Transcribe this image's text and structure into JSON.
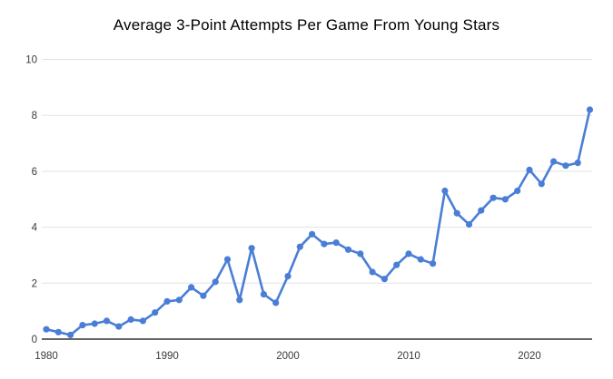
{
  "chart": {
    "title": "Average 3-Point Attempts Per Game From Young Stars"
  },
  "chart_data": {
    "type": "line",
    "title": "Average 3-Point Attempts Per Game From Young Stars",
    "xlabel": "",
    "ylabel": "",
    "x": [
      1980,
      1981,
      1982,
      1983,
      1984,
      1985,
      1986,
      1987,
      1988,
      1989,
      1990,
      1991,
      1992,
      1993,
      1994,
      1995,
      1996,
      1997,
      1998,
      1999,
      2000,
      2001,
      2002,
      2003,
      2004,
      2005,
      2006,
      2007,
      2008,
      2009,
      2010,
      2011,
      2012,
      2013,
      2014,
      2015,
      2016,
      2017,
      2018,
      2019,
      2020,
      2021,
      2022,
      2023,
      2024,
      2025
    ],
    "values": [
      0.35,
      0.25,
      0.15,
      0.5,
      0.55,
      0.65,
      0.45,
      0.7,
      0.65,
      0.95,
      1.35,
      1.4,
      1.85,
      1.55,
      2.05,
      2.85,
      1.4,
      3.25,
      1.6,
      1.3,
      2.25,
      3.3,
      3.75,
      3.4,
      3.45,
      3.2,
      3.05,
      2.4,
      2.15,
      2.65,
      3.05,
      2.85,
      2.7,
      5.3,
      4.5,
      4.1,
      4.6,
      5.05,
      5.0,
      5.3,
      6.05,
      5.55,
      6.35,
      6.2,
      6.3,
      8.2
    ],
    "ylim": [
      0,
      10
    ],
    "yticks": [
      0,
      2,
      4,
      6,
      8,
      10
    ],
    "xticks": [
      1980,
      1990,
      2000,
      2010,
      2020
    ],
    "grid": true,
    "legend_position": "none",
    "line_color": "#4a7ed6",
    "point_color": "#4a7ed6",
    "gridline_color": "#e2e2e2",
    "axis_line_color": "#333333",
    "tick_label_color": "#3a3a3a",
    "background_color": "#ffffff"
  }
}
